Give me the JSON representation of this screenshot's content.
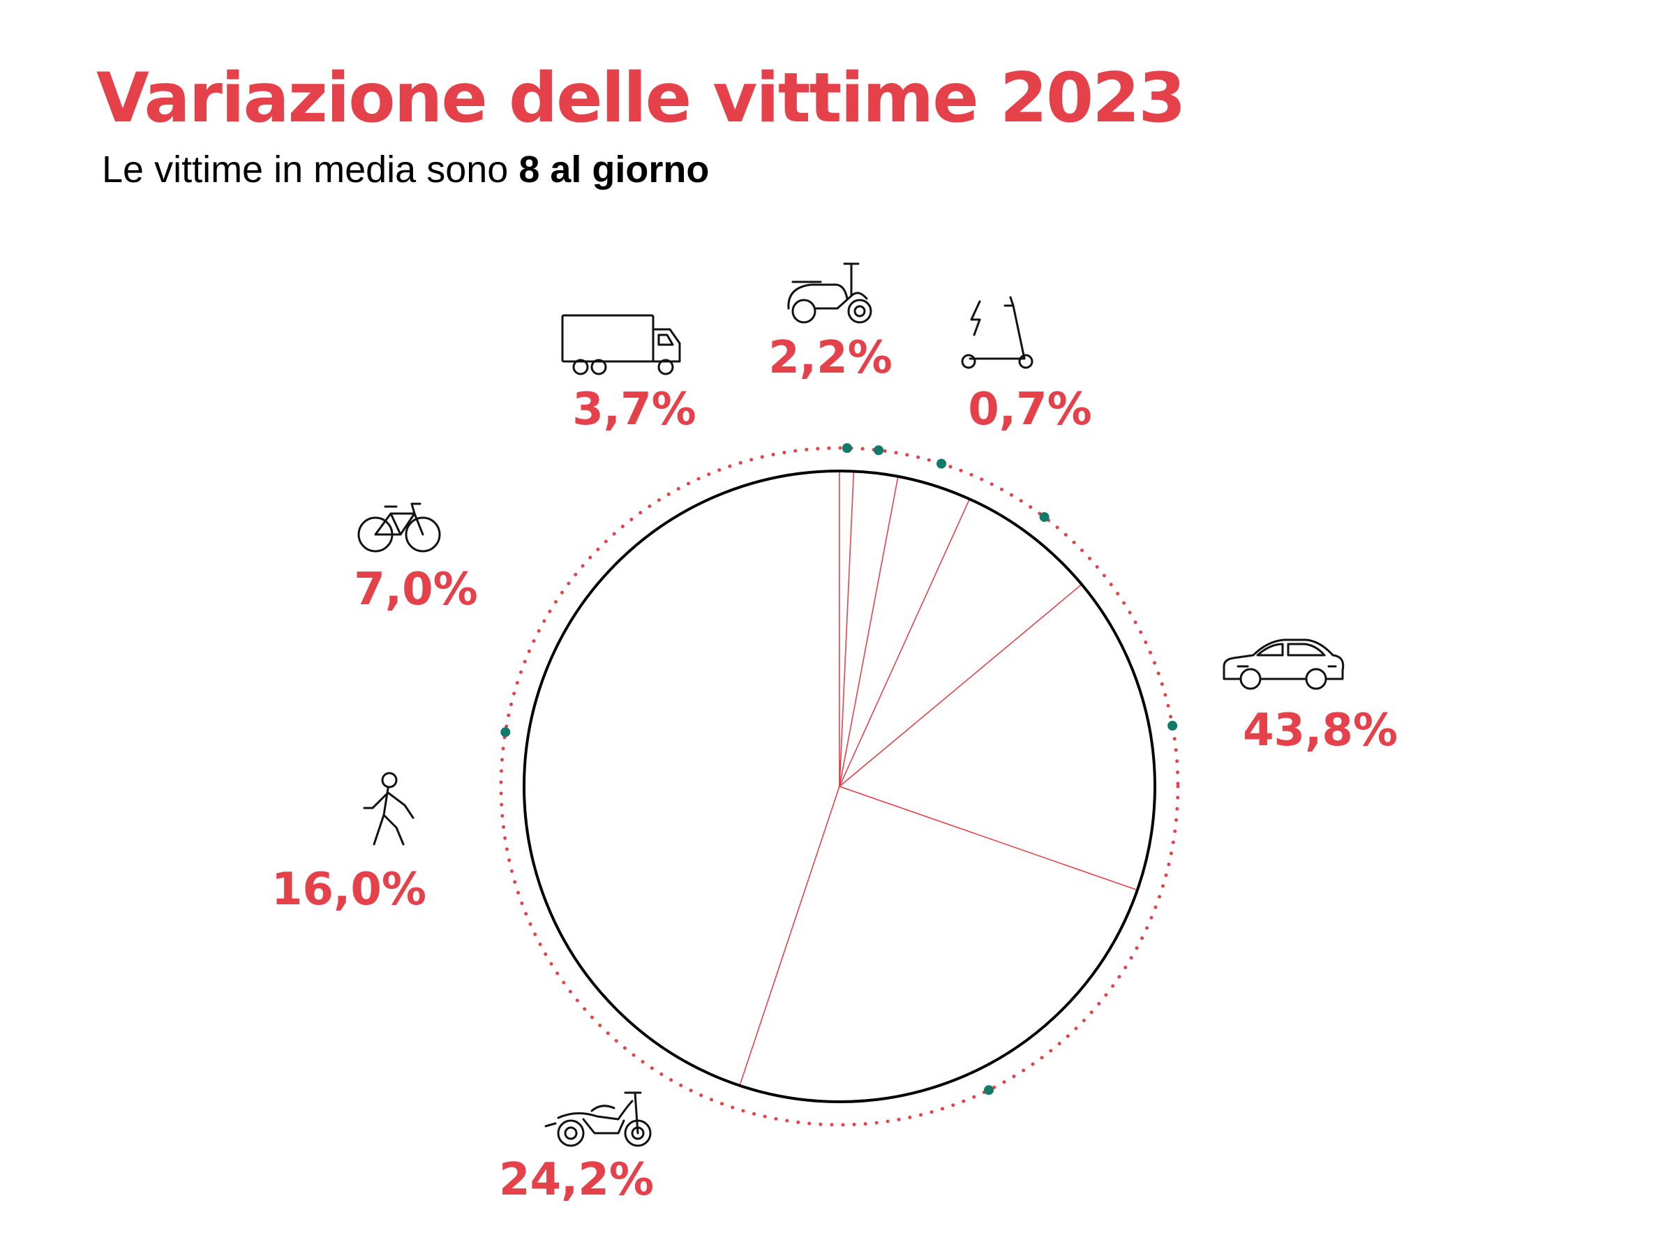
{
  "title": "Variazione delle vittime 2023",
  "subtitle": {
    "prefix": "Le vittime in media sono",
    "highlight": "8 al giorno"
  },
  "colors": {
    "accent": "#e5414a",
    "dot": "#117a68",
    "outline": "#000000"
  },
  "chart_data": {
    "type": "pie",
    "title": "Variazione delle vittime 2023",
    "slices": [
      {
        "icon": "car-icon",
        "label": "43,8%",
        "value": 43.8
      },
      {
        "icon": "motorcycle-icon",
        "label": "24,2%",
        "value": 24.2
      },
      {
        "icon": "pedestrian-icon",
        "label": "16,0%",
        "value": 16.0
      },
      {
        "icon": "bicycle-icon",
        "label": "7,0%",
        "value": 7.0
      },
      {
        "icon": "truck-icon",
        "label": "3,7%",
        "value": 3.7
      },
      {
        "icon": "scooter-icon",
        "label": "2,2%",
        "value": 2.2
      },
      {
        "icon": "e-scooter-icon",
        "label": "0,7%",
        "value": 0.7
      }
    ]
  }
}
